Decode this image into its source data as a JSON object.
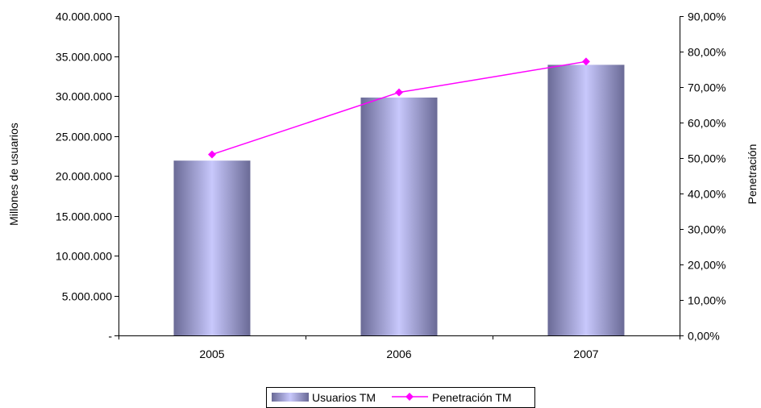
{
  "chart_data": {
    "type": "bar",
    "categories": [
      "2005",
      "2006",
      "2007"
    ],
    "series": [
      {
        "name": "Usuarios TM",
        "type": "bar",
        "axis": "left",
        "values": [
          21900000,
          29800000,
          33900000
        ],
        "color": "#c4c4f8"
      },
      {
        "name": "Penetración TM",
        "type": "line",
        "axis": "right",
        "values": [
          0.51,
          0.685,
          0.772
        ],
        "color": "#ff00ff"
      }
    ],
    "ylabel": "Millones de usuarios",
    "y2label": "Penetración",
    "ylim": [
      0,
      40000000
    ],
    "y2lim": [
      0,
      0.9
    ],
    "y_ticks": [
      0,
      5000000,
      10000000,
      15000000,
      20000000,
      25000000,
      30000000,
      35000000,
      40000000
    ],
    "y_tick_labels": [
      "-",
      "5.000.000",
      "10.000.000",
      "15.000.000",
      "20.000.000",
      "25.000.000",
      "30.000.000",
      "35.000.000",
      "40.000.000"
    ],
    "y2_ticks": [
      0,
      0.1,
      0.2,
      0.3,
      0.4,
      0.5,
      0.6,
      0.7,
      0.8,
      0.9
    ],
    "y2_tick_labels": [
      "0,00%",
      "10,00%",
      "20,00%",
      "30,00%",
      "40,00%",
      "50,00%",
      "60,00%",
      "70,00%",
      "80,00%",
      "90,00%"
    ],
    "grid": false,
    "legend": "bottom"
  }
}
